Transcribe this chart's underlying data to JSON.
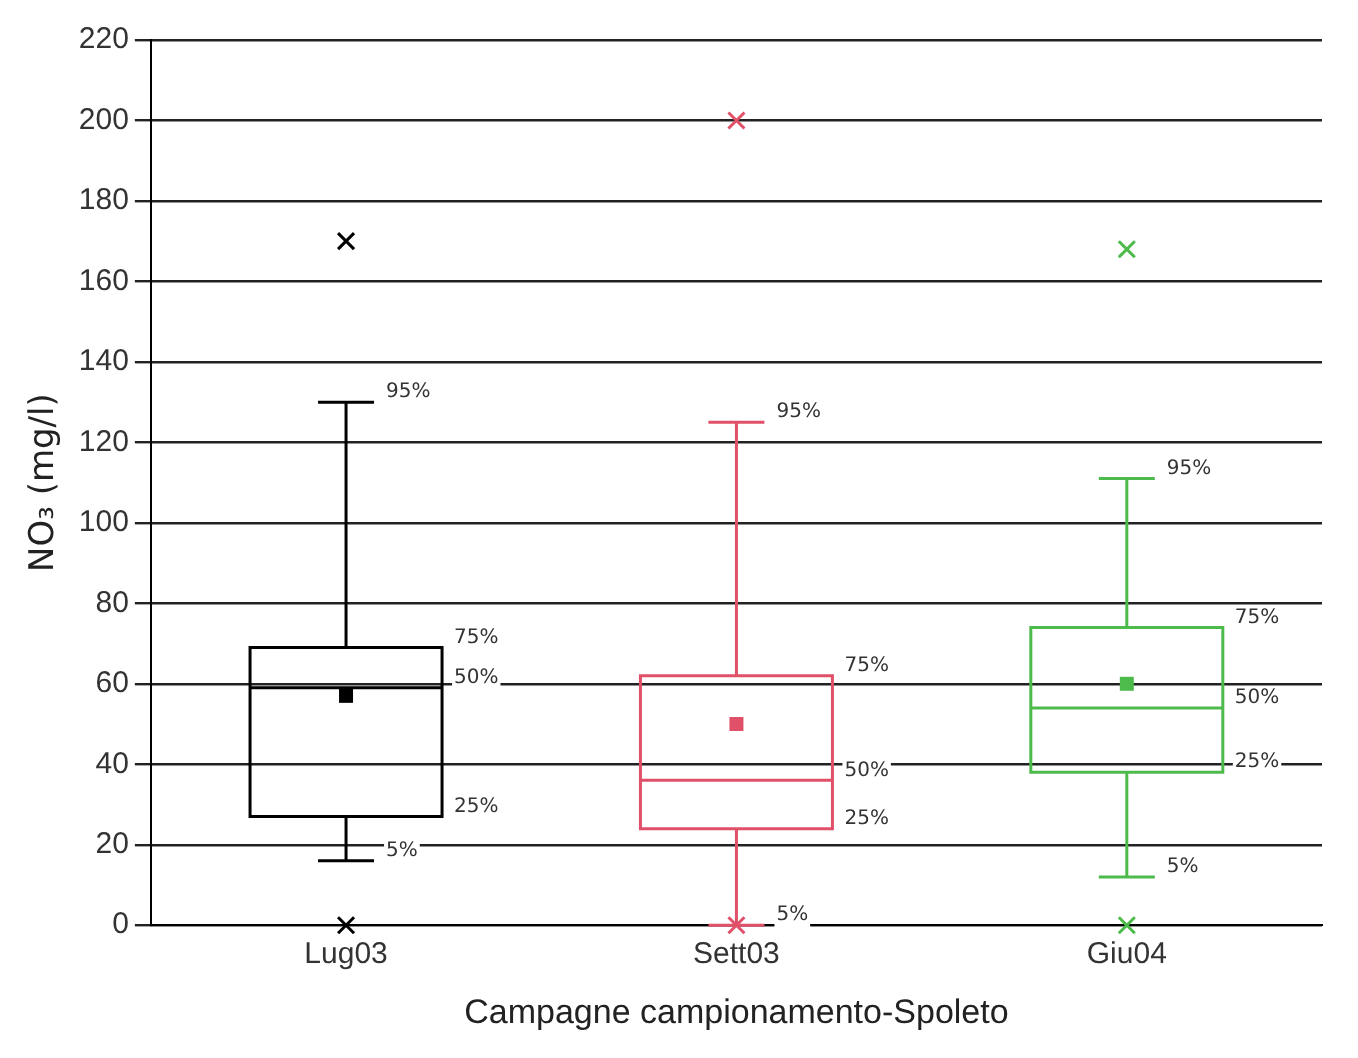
{
  "chart_data": {
    "type": "box",
    "xlabel": "Campagne campionamento-Spoleto",
    "ylabel": "NO₃ (mg/l)",
    "categories": [
      "Lug03",
      "Sett03",
      "Giu04"
    ],
    "colors": [
      "#000000",
      "#e05068",
      "#4cbb4c"
    ],
    "boxes": [
      {
        "low": 16,
        "q1": 27,
        "median": 59,
        "q3": 69,
        "high": 130,
        "mean": 57,
        "outliers": [
          0,
          170
        ]
      },
      {
        "low": 0,
        "q1": 24,
        "median": 36,
        "q3": 62,
        "high": 125,
        "mean": 50,
        "outliers": [
          0,
          200
        ]
      },
      {
        "low": 12,
        "q1": 38,
        "median": 54,
        "q3": 74,
        "high": 111,
        "mean": 60,
        "outliers": [
          0,
          168
        ]
      }
    ],
    "ylim": [
      0,
      220
    ],
    "yticks": [
      0,
      20,
      40,
      60,
      80,
      100,
      120,
      140,
      160,
      180,
      200,
      220
    ],
    "grid": "y",
    "annotations": [
      "95%",
      "75%",
      "50%",
      "25%",
      "5%",
      "95%",
      "75%",
      "50%",
      "25%",
      "5%",
      "95%",
      "75%",
      "50%",
      "25%",
      "5%"
    ]
  }
}
